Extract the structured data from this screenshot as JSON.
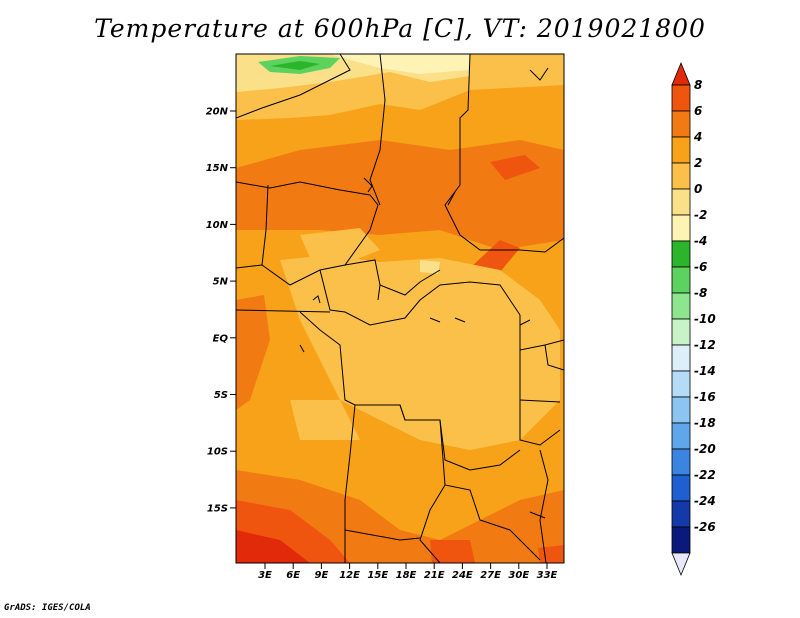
{
  "title": "Temperature at 600hPa [C], VT: 2019021800",
  "credit": "GrADS: IGES/COLA",
  "map": {
    "lat_labels": [
      "20N",
      "15N",
      "10N",
      "5N",
      "EQ",
      "5S",
      "10S",
      "15S"
    ],
    "lon_labels": [
      "3E",
      "6E",
      "9E",
      "12E",
      "15E",
      "18E",
      "21E",
      "24E",
      "27E",
      "30E",
      "33E"
    ]
  },
  "colorbar": {
    "labels": [
      "8",
      "6",
      "4",
      "2",
      "0",
      "-2",
      "-4",
      "-6",
      "-8",
      "-10",
      "-12",
      "-14",
      "-16",
      "-18",
      "-20",
      "-22",
      "-24",
      "-26"
    ],
    "colors": [
      "#e02a0a",
      "#f05510",
      "#f27a12",
      "#f7a218",
      "#fbc049",
      "#fbe08a",
      "#fdf3b5",
      "#2ab52a",
      "#5ed25e",
      "#8de58d",
      "#c8f3c8",
      "#ddf0fa",
      "#b5dcf7",
      "#8cc4f2",
      "#5fa6ea",
      "#3b84e0",
      "#1f5fcf",
      "#1439a8",
      "#0b1a7a",
      "#e8e8f8"
    ]
  }
}
